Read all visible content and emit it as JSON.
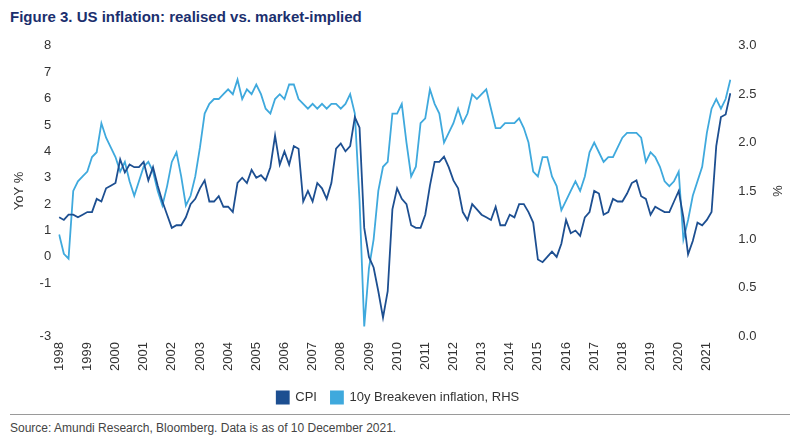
{
  "chart_data": {
    "type": "line",
    "title": "Figure 3. US inflation: realised vs. market-implied",
    "source": "Source: Amundi Research, Bloomberg. Data is as of 10 December 2021.",
    "ylabel": "YoY %",
    "y2label": "%",
    "categories": [
      "1998",
      null,
      null,
      null,
      null,
      null,
      "1999",
      null,
      null,
      null,
      null,
      null,
      "2000",
      null,
      null,
      null,
      null,
      null,
      "2001",
      null,
      null,
      null,
      null,
      null,
      "2002",
      null,
      null,
      null,
      null,
      null,
      "2003",
      null,
      null,
      null,
      null,
      null,
      "2004",
      null,
      null,
      null,
      null,
      null,
      "2005",
      null,
      null,
      null,
      null,
      null,
      "2006",
      null,
      null,
      null,
      null,
      null,
      "2007",
      null,
      null,
      null,
      null,
      null,
      "2008",
      null,
      null,
      null,
      null,
      null,
      "2009",
      null,
      null,
      null,
      null,
      null,
      "2010",
      null,
      null,
      null,
      null,
      null,
      "2011",
      null,
      null,
      null,
      null,
      null,
      "2012",
      null,
      null,
      null,
      null,
      null,
      "2013",
      null,
      null,
      null,
      null,
      null,
      "2014",
      null,
      null,
      null,
      null,
      null,
      "2015",
      null,
      null,
      null,
      null,
      null,
      "2016",
      null,
      null,
      null,
      null,
      null,
      "2017",
      null,
      null,
      null,
      null,
      null,
      "2018",
      null,
      null,
      null,
      null,
      null,
      "2019",
      null,
      null,
      null,
      null,
      null,
      "2020",
      null,
      null,
      null,
      null,
      null,
      "2021",
      null,
      null,
      null,
      null,
      null
    ],
    "series": [
      {
        "name": "CPI",
        "color": "#1d4f91",
        "axis": "y",
        "values": [
          1.5,
          1.4,
          1.6,
          1.6,
          1.5,
          1.6,
          1.7,
          1.7,
          2.2,
          2.1,
          2.6,
          2.7,
          2.8,
          3.7,
          3.2,
          3.5,
          3.4,
          3.4,
          3.6,
          2.9,
          3.4,
          2.7,
          2.1,
          1.6,
          1.1,
          1.2,
          1.2,
          1.5,
          2.0,
          2.2,
          2.6,
          2.9,
          2.1,
          2.1,
          2.3,
          1.9,
          1.9,
          1.7,
          2.8,
          3.0,
          2.8,
          3.3,
          3.0,
          3.1,
          2.9,
          3.4,
          4.6,
          3.5,
          4.0,
          3.5,
          4.2,
          4.1,
          2.1,
          2.5,
          2.1,
          2.8,
          2.6,
          2.2,
          2.8,
          4.1,
          4.3,
          4.0,
          4.2,
          5.3,
          4.9,
          1.1,
          0.0,
          -0.4,
          -1.3,
          -2.3,
          -1.3,
          1.8,
          2.6,
          2.2,
          2.0,
          1.2,
          1.1,
          1.1,
          1.6,
          2.7,
          3.6,
          3.6,
          3.8,
          3.4,
          2.9,
          2.6,
          1.7,
          1.4,
          2.0,
          1.8,
          1.6,
          1.5,
          1.4,
          1.9,
          1.2,
          1.2,
          1.6,
          1.5,
          2.0,
          2.0,
          1.7,
          1.3,
          -0.1,
          -0.2,
          0.0,
          0.2,
          0.0,
          0.5,
          1.4,
          0.9,
          1.0,
          0.8,
          1.5,
          1.7,
          2.5,
          2.4,
          1.6,
          1.7,
          2.2,
          2.1,
          2.1,
          2.4,
          2.8,
          2.9,
          2.3,
          2.2,
          1.6,
          1.9,
          1.8,
          1.7,
          1.7,
          2.1,
          2.5,
          1.5,
          0.1,
          0.6,
          1.3,
          1.2,
          1.4,
          1.7,
          4.2,
          5.3,
          5.4,
          6.2
        ]
      },
      {
        "name": "10y Breakeven inflation, RHS",
        "color": "#3fa9dd",
        "axis": "y2",
        "values": [
          1.05,
          0.85,
          0.8,
          1.5,
          1.6,
          1.65,
          1.7,
          1.85,
          1.9,
          2.2,
          2.05,
          1.95,
          1.85,
          1.7,
          1.8,
          1.6,
          1.45,
          1.6,
          1.75,
          1.8,
          1.7,
          1.5,
          1.35,
          1.55,
          1.8,
          1.9,
          1.65,
          1.35,
          1.45,
          1.65,
          1.95,
          2.3,
          2.4,
          2.45,
          2.45,
          2.5,
          2.55,
          2.5,
          2.65,
          2.45,
          2.55,
          2.5,
          2.6,
          2.5,
          2.35,
          2.3,
          2.45,
          2.5,
          2.45,
          2.6,
          2.6,
          2.45,
          2.4,
          2.35,
          2.4,
          2.35,
          2.4,
          2.35,
          2.4,
          2.4,
          2.35,
          2.4,
          2.5,
          2.3,
          1.4,
          0.1,
          0.7,
          1.0,
          1.5,
          1.75,
          1.8,
          2.3,
          2.3,
          2.4,
          2.0,
          1.65,
          1.75,
          2.2,
          2.25,
          2.55,
          2.4,
          2.3,
          2.0,
          2.1,
          2.2,
          2.35,
          2.2,
          2.3,
          2.5,
          2.45,
          2.5,
          2.55,
          2.35,
          2.15,
          2.15,
          2.2,
          2.2,
          2.2,
          2.25,
          2.15,
          2.0,
          1.7,
          1.65,
          1.85,
          1.85,
          1.65,
          1.55,
          1.3,
          1.4,
          1.5,
          1.6,
          1.5,
          1.65,
          1.9,
          2.0,
          1.9,
          1.8,
          1.85,
          1.85,
          1.95,
          2.05,
          2.1,
          2.1,
          2.1,
          2.05,
          1.8,
          1.9,
          1.85,
          1.75,
          1.6,
          1.55,
          1.6,
          1.7,
          1.0,
          1.2,
          1.45,
          1.6,
          1.75,
          2.1,
          2.35,
          2.45,
          2.35,
          2.45,
          2.65
        ]
      }
    ],
    "ylim": [
      -3,
      8
    ],
    "yticks": [
      -3,
      -1,
      0,
      1,
      2,
      3,
      4,
      5,
      6,
      7,
      8
    ],
    "y2lim": [
      0,
      3
    ],
    "y2ticks": [
      {
        "value": 0,
        "label": "0.0"
      },
      0.5,
      {
        "value": 1,
        "label": "1.0"
      },
      1.5,
      {
        "value": 2,
        "label": "2.0"
      },
      2.5,
      {
        "value": 3,
        "label": "3.0"
      }
    ],
    "grid": false,
    "legend": "bottom"
  }
}
